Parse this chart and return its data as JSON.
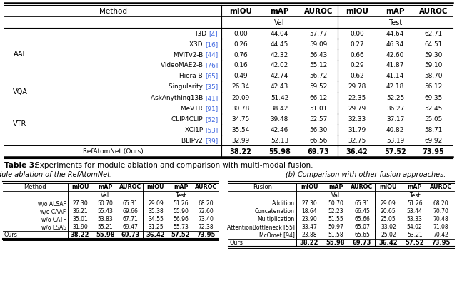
{
  "main_table": {
    "groups": [
      {
        "group_label": "AAL",
        "rows": [
          [
            "I3D [4]",
            "0.00",
            "44.04",
            "57.77",
            "0.00",
            "44.64",
            "62.71"
          ],
          [
            "X3D [16]",
            "0.26",
            "44.45",
            "59.09",
            "0.27",
            "46.34",
            "64.51"
          ],
          [
            "MViTv2-B [44]",
            "0.76",
            "42.32",
            "56.43",
            "0.66",
            "42.60",
            "59.30"
          ],
          [
            "VideoMAE2-B [76]",
            "0.16",
            "42.02",
            "55.12",
            "0.29",
            "41.87",
            "59.10"
          ],
          [
            "Hiera-B [65]",
            "0.49",
            "42.74",
            "56.72",
            "0.62",
            "41.14",
            "58.70"
          ]
        ]
      },
      {
        "group_label": "VQA",
        "rows": [
          [
            "Singularity [35]",
            "26.34",
            "42.43",
            "59.52",
            "29.78",
            "42.18",
            "56.12"
          ],
          [
            "AskAnything13B [41]",
            "20.09",
            "51.42",
            "66.12",
            "22.35",
            "52.25",
            "69.35"
          ]
        ]
      },
      {
        "group_label": "VTR",
        "rows": [
          [
            "MeVTR [91]",
            "30.78",
            "38.42",
            "51.01",
            "29.79",
            "36.27",
            "52.45"
          ],
          [
            "CLIP4CLIP [52]",
            "34.75",
            "39.48",
            "52.57",
            "32.33",
            "37.17",
            "55.05"
          ],
          [
            "XCl1P [53]",
            "35.54",
            "42.46",
            "56.30",
            "31.79",
            "40.82",
            "58.71"
          ],
          [
            "BLIPv2 [39]",
            "32.99",
            "52.13",
            "66.56",
            "32.75",
            "53.19",
            "69.92"
          ]
        ]
      }
    ],
    "ours_row": [
      "RefAtomNet (Ours)",
      "38.22",
      "55.98",
      "69.73",
      "36.42",
      "57.52",
      "73.95"
    ]
  },
  "caption_bold": "Table 3:",
  "caption_rest": " Experiments for module ablation and comparison with multi-modal fusion.",
  "sub_caption_a": "(a) Module ablation of the RefAtomNet.",
  "sub_caption_b": "(b) Comparison with other fusion approaches.",
  "table_a": {
    "col0_label": "Method",
    "rows": [
      [
        "w/o ALSAF",
        "27.30",
        "50.70",
        "65.31",
        "29.09",
        "51.26",
        "68.20"
      ],
      [
        "w/o CAAF",
        "36.21",
        "55.43",
        "69.66",
        "35.38",
        "55.90",
        "72.60"
      ],
      [
        "w/o CATF",
        "35.01",
        "53.83",
        "67.71",
        "34.55",
        "56.96",
        "73.40"
      ],
      [
        "w/o LSAS",
        "31.90",
        "55.21",
        "69.47",
        "31.25",
        "55.73",
        "72.38"
      ]
    ],
    "ours_row": [
      "Ours",
      "38.22",
      "55.98",
      "69.73",
      "36.42",
      "57.52",
      "73.95"
    ]
  },
  "table_b": {
    "col0_label": "Fusion",
    "rows": [
      [
        "Addition",
        "27.30",
        "50.70",
        "65.31",
        "29.09",
        "51.26",
        "68.20"
      ],
      [
        "Concatenation",
        "18.64",
        "52.23",
        "66.45",
        "20.65",
        "53.44",
        "70.70"
      ],
      [
        "Multiplication",
        "23.90",
        "51.55",
        "65.66",
        "25.05",
        "53.33",
        "70.48"
      ],
      [
        "AttentionBottleneck [55]",
        "33.47",
        "50.97",
        "65.07",
        "33.02",
        "54.02",
        "71.08"
      ],
      [
        "McOmet [94]",
        "23.88",
        "51.58",
        "65.65",
        "25.02",
        "53.21",
        "70.42"
      ]
    ],
    "ours_row": [
      "Ours",
      "38.22",
      "55.98",
      "69.73",
      "36.42",
      "57.52",
      "73.95"
    ]
  },
  "blue": "#4169E1",
  "black": "#000000",
  "bg": "#ffffff"
}
